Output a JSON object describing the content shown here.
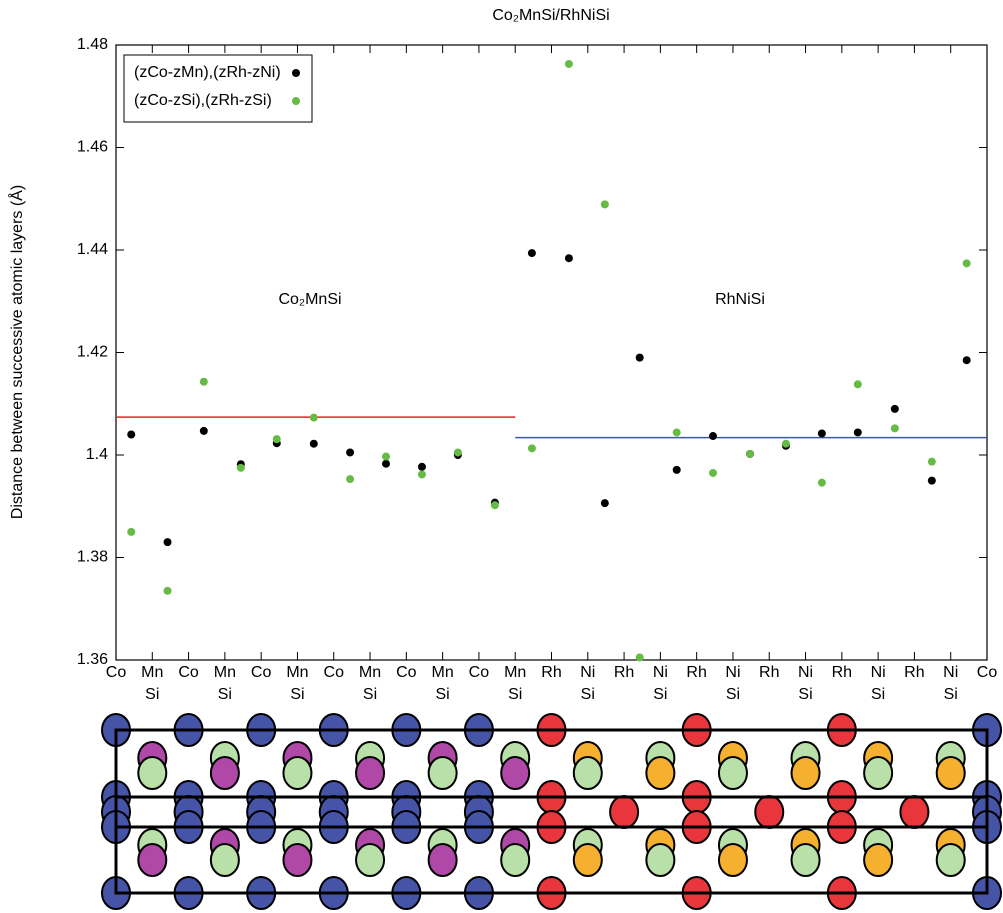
{
  "chart_data": {
    "type": "scatter",
    "title": "Co₂MnSi/RhNiSi",
    "ylabel": "Distance between successive atomic layers (Å)",
    "xlim": [
      0,
      24
    ],
    "ylim": [
      1.36,
      1.48
    ],
    "yticks": [
      1.36,
      1.38,
      1.4,
      1.42,
      1.44,
      1.46,
      1.48
    ],
    "xticks": [
      {
        "value": 0,
        "label": "Co"
      },
      {
        "value": 1,
        "label": "Mn\nSi"
      },
      {
        "value": 2,
        "label": "Co"
      },
      {
        "value": 3,
        "label": "Mn\nSi"
      },
      {
        "value": 4,
        "label": "Co"
      },
      {
        "value": 5,
        "label": "Mn\nSi"
      },
      {
        "value": 6,
        "label": "Co"
      },
      {
        "value": 7,
        "label": "Mn\nSi"
      },
      {
        "value": 8,
        "label": "Co"
      },
      {
        "value": 9,
        "label": "Mn\nSi"
      },
      {
        "value": 10,
        "label": "Co"
      },
      {
        "value": 11,
        "label": "Mn\nSi"
      },
      {
        "value": 12,
        "label": "Rh"
      },
      {
        "value": 13,
        "label": "Ni\nSi"
      },
      {
        "value": 14,
        "label": "Rh"
      },
      {
        "value": 15,
        "label": "Ni\nSi"
      },
      {
        "value": 16,
        "label": "Rh"
      },
      {
        "value": 17,
        "label": "Ni\nSi"
      },
      {
        "value": 18,
        "label": "Rh"
      },
      {
        "value": 19,
        "label": "Ni\nSi"
      },
      {
        "value": 20,
        "label": "Rh"
      },
      {
        "value": 21,
        "label": "Ni\nSi"
      },
      {
        "value": 22,
        "label": "Rh"
      },
      {
        "value": 23,
        "label": "Ni\nSi"
      },
      {
        "value": 24,
        "label": "Co"
      }
    ],
    "x": [
      0.42,
      1.42,
      2.42,
      3.44,
      4.43,
      5.45,
      6.45,
      7.44,
      8.43,
      9.42,
      10.44,
      11.46,
      12.48,
      13.47,
      14.43,
      15.45,
      16.45,
      17.47,
      18.46,
      19.45,
      20.44,
      21.46,
      22.48,
      23.44
    ],
    "series": [
      {
        "name": "(zCo-zMn),(zRh-zNi)",
        "color": "#000000",
        "values": [
          1.404,
          1.383,
          1.4047,
          1.3982,
          1.4023,
          1.4022,
          1.4005,
          1.3983,
          1.3977,
          1.4,
          1.3907,
          1.4394,
          1.4384,
          1.3906,
          1.419,
          1.3971,
          1.4037,
          1.4002,
          1.4018,
          1.4042,
          1.4044,
          1.409,
          1.395,
          1.4185
        ]
      },
      {
        "name": "(zCo-zSi),(zRh-zSi)",
        "color": "#66bb44",
        "values": [
          1.385,
          1.3735,
          1.4143,
          1.3975,
          1.4031,
          1.4073,
          1.3953,
          1.3997,
          1.3962,
          1.4005,
          1.3902,
          1.4013,
          1.4763,
          1.4489,
          1.3605,
          1.4044,
          1.3965,
          1.4002,
          1.4022,
          1.3946,
          1.4138,
          1.4052,
          1.3987,
          1.4374
        ]
      }
    ],
    "reference_lines": [
      {
        "x": [
          0,
          11
        ],
        "value": 1.4074,
        "color": "#e8202a"
      },
      {
        "x": [
          11,
          24
        ],
        "value": 1.4034,
        "color": "#3a5aa8"
      }
    ],
    "annotations": [
      {
        "text": "Co₂MnSi",
        "color": "#e8202a"
      },
      {
        "text": "RhNiSi",
        "color": "#3a5aa8"
      }
    ],
    "legend": "upper left",
    "grid": false
  }
}
